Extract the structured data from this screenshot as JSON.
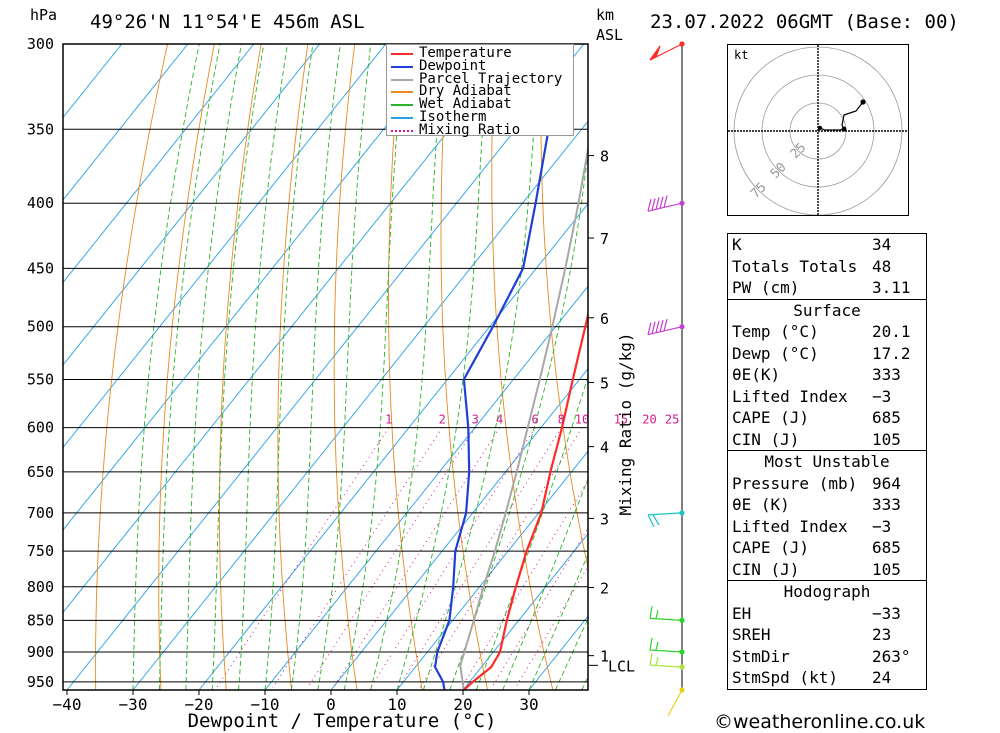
{
  "header": {
    "unit_left": "hPa",
    "location": "49°26'N  11°54'E  456m  ASL",
    "km_label": "km",
    "asl_label": "ASL",
    "datetime": "23.07.2022  06GMT  (Base: 00)"
  },
  "legend": [
    {
      "label": "Temperature",
      "color": "#ff2a2a",
      "style": "solid"
    },
    {
      "label": "Dewpoint",
      "color": "#1f3fd6",
      "style": "solid"
    },
    {
      "label": "Parcel Trajectory",
      "color": "#a8a8a8",
      "style": "solid"
    },
    {
      "label": "Dry Adiabat",
      "color": "#e88a1e",
      "style": "solid"
    },
    {
      "label": "Wet Adiabat",
      "color": "#28b428",
      "style": "solid"
    },
    {
      "label": "Isotherm",
      "color": "#2aa0e6",
      "style": "solid"
    },
    {
      "label": "Mixing Ratio",
      "color": "#d21a8c",
      "style": "dotted"
    }
  ],
  "chart_data": {
    "type": "line",
    "title": "",
    "xlabel": "Dewpoint / Temperature (°C)",
    "ylabel": "hPa",
    "right_axis_label": "Mixing Ratio (g/kg)",
    "x_ticks": [
      "−40",
      "−30",
      "−20",
      "−10",
      "0",
      "10",
      "20",
      "30"
    ],
    "x_tick_values": [
      -40,
      -30,
      -20,
      -10,
      0,
      10,
      20,
      30
    ],
    "pressure_levels": [
      300,
      350,
      400,
      450,
      500,
      550,
      600,
      650,
      700,
      750,
      800,
      850,
      900,
      950
    ],
    "km_ticks": [
      {
        "label": "8",
        "p": 367
      },
      {
        "label": "7",
        "p": 426
      },
      {
        "label": "6",
        "p": 492
      },
      {
        "label": "5",
        "p": 553
      },
      {
        "label": "4",
        "p": 621
      },
      {
        "label": "3",
        "p": 707
      },
      {
        "label": "2",
        "p": 801
      },
      {
        "label": "1",
        "p": 906
      }
    ],
    "lcl_label": "LCL",
    "lcl_p": 922,
    "mixing_ratio_labels": [
      "1",
      "2",
      "3",
      "4",
      "6",
      "8",
      "10",
      "15",
      "20",
      "25"
    ],
    "series": [
      {
        "name": "Temperature",
        "color": "#ff2a2a",
        "points": [
          {
            "p": 964,
            "t": 20.1
          },
          {
            "p": 950,
            "t": 20.5
          },
          {
            "p": 925,
            "t": 21.5
          },
          {
            "p": 900,
            "t": 21.0
          },
          {
            "p": 850,
            "t": 18.2
          },
          {
            "p": 800,
            "t": 15.5
          },
          {
            "p": 750,
            "t": 12.8
          },
          {
            "p": 700,
            "t": 10.4
          },
          {
            "p": 650,
            "t": 6.8
          },
          {
            "p": 600,
            "t": 3.2
          },
          {
            "p": 550,
            "t": -1.0
          },
          {
            "p": 500,
            "t": -5.5
          },
          {
            "p": 450,
            "t": -10.5
          },
          {
            "p": 400,
            "t": -17.5
          },
          {
            "p": 350,
            "t": -25.5
          },
          {
            "p": 300,
            "t": -34.5
          }
        ]
      },
      {
        "name": "Dewpoint",
        "color": "#1f3fd6",
        "points": [
          {
            "p": 964,
            "t": 17.2
          },
          {
            "p": 950,
            "t": 16.0
          },
          {
            "p": 925,
            "t": 13.0
          },
          {
            "p": 900,
            "t": 11.5
          },
          {
            "p": 850,
            "t": 9.5
          },
          {
            "p": 800,
            "t": 6.0
          },
          {
            "p": 750,
            "t": 2.0
          },
          {
            "p": 700,
            "t": -1.0
          },
          {
            "p": 650,
            "t": -5.5
          },
          {
            "p": 600,
            "t": -11.0
          },
          {
            "p": 550,
            "t": -17.5
          },
          {
            "p": 500,
            "t": -19.5
          },
          {
            "p": 450,
            "t": -22.0
          },
          {
            "p": 400,
            "t": -28.0
          },
          {
            "p": 350,
            "t": -35.0
          },
          {
            "p": 300,
            "t": -43.0
          }
        ]
      },
      {
        "name": "Parcel Trajectory",
        "color": "#a8a8a8",
        "points": [
          {
            "p": 964,
            "t": 20.1
          },
          {
            "p": 922,
            "t": 16.6
          },
          {
            "p": 900,
            "t": 15.6
          },
          {
            "p": 850,
            "t": 13.2
          },
          {
            "p": 800,
            "t": 10.6
          },
          {
            "p": 750,
            "t": 8.0
          },
          {
            "p": 700,
            "t": 5.0
          },
          {
            "p": 650,
            "t": 1.7
          },
          {
            "p": 600,
            "t": -2.0
          },
          {
            "p": 550,
            "t": -6.0
          },
          {
            "p": 500,
            "t": -10.5
          },
          {
            "p": 450,
            "t": -15.6
          },
          {
            "p": 400,
            "t": -21.5
          },
          {
            "p": 350,
            "t": -28.5
          },
          {
            "p": 300,
            "t": -37.0
          }
        ]
      }
    ],
    "wind_barbs": [
      {
        "p": 300,
        "color": "#ff2a2a"
      },
      {
        "p": 400,
        "color": "#c43fcf"
      },
      {
        "p": 500,
        "color": "#c43fcf"
      },
      {
        "p": 700,
        "color": "#19c4c4"
      },
      {
        "p": 850,
        "color": "#2bd42b"
      },
      {
        "p": 900,
        "color": "#2bd42b"
      },
      {
        "p": 925,
        "color": "#a8e63a"
      },
      {
        "p": 964,
        "color": "#e6d21a"
      }
    ]
  },
  "hodograph": {
    "unit": "kt",
    "ring_labels": [
      "25",
      "50",
      "75"
    ]
  },
  "indices": {
    "rows": [
      {
        "k": "K",
        "v": "34"
      },
      {
        "k": "Totals Totals",
        "v": "48"
      },
      {
        "k": "PW (cm)",
        "v": "3.11"
      }
    ],
    "surface": {
      "title": "Surface",
      "rows": [
        {
          "k": "Temp (°C)",
          "v": "20.1"
        },
        {
          "k": "Dewp (°C)",
          "v": "17.2"
        },
        {
          "k": "θE(K)",
          "v": "333"
        },
        {
          "k": "Lifted Index",
          "v": "−3"
        },
        {
          "k": "CAPE (J)",
          "v": "685"
        },
        {
          "k": "CIN (J)",
          "v": "105"
        }
      ]
    },
    "most_unstable": {
      "title": "Most Unstable",
      "rows": [
        {
          "k": "Pressure (mb)",
          "v": "964"
        },
        {
          "k": "θE (K)",
          "v": "333"
        },
        {
          "k": "Lifted Index",
          "v": "−3"
        },
        {
          "k": "CAPE (J)",
          "v": "685"
        },
        {
          "k": "CIN (J)",
          "v": "105"
        }
      ]
    },
    "hodograph_tbl": {
      "title": "Hodograph",
      "rows": [
        {
          "k": "EH",
          "v": "−33"
        },
        {
          "k": "SREH",
          "v": "23"
        },
        {
          "k": "StmDir",
          "v": "263°"
        },
        {
          "k": "StmSpd (kt)",
          "v": "24"
        }
      ]
    }
  },
  "footer": "©weatheronline.co.uk"
}
